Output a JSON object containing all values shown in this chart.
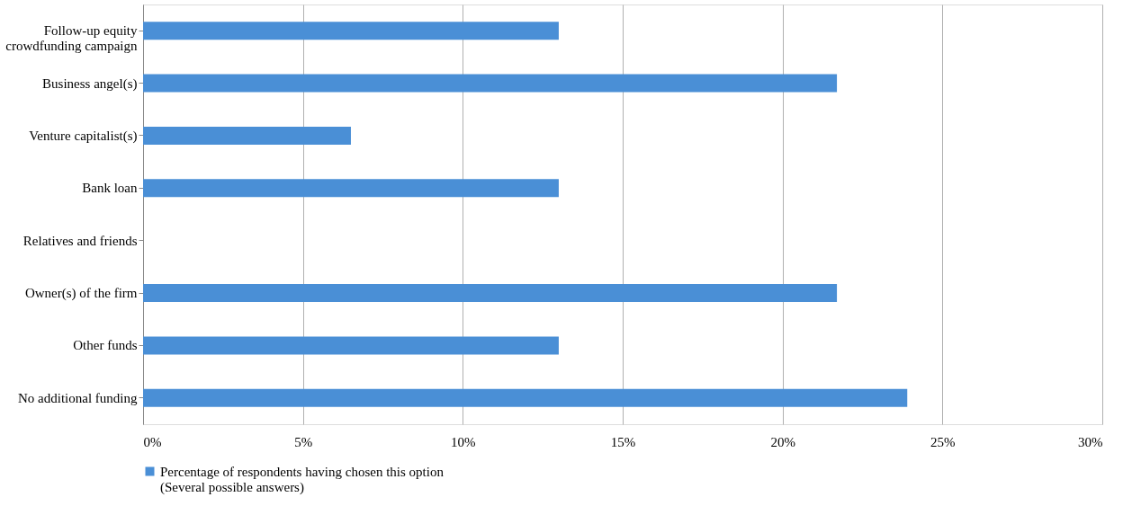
{
  "chart_data": {
    "type": "bar",
    "orientation": "horizontal",
    "categories": [
      "Follow-up equity\ncrowdfunding campaign",
      "Business angel(s)",
      "Venture capitalist(s)",
      "Bank loan",
      "Relatives and friends",
      "Owner(s) of the firm",
      "Other funds",
      "No additional funding"
    ],
    "series": [
      {
        "name": "Percentage of respondents having chosen this option\n(Several possible answers)",
        "color": "#4a8fd6",
        "values": [
          13.0,
          21.7,
          6.5,
          13.0,
          0,
          21.7,
          13.0,
          23.9
        ]
      }
    ],
    "xlim": [
      0,
      30
    ],
    "xticks": [
      {
        "value": 0,
        "label": "0%"
      },
      {
        "value": 5,
        "label": "5%"
      },
      {
        "value": 10,
        "label": "10%"
      },
      {
        "value": 15,
        "label": "15%"
      },
      {
        "value": 20,
        "label": "20%"
      },
      {
        "value": 25,
        "label": "25%"
      },
      {
        "value": 30,
        "label": "30%"
      }
    ],
    "grid": "x",
    "legend": "bottom"
  }
}
